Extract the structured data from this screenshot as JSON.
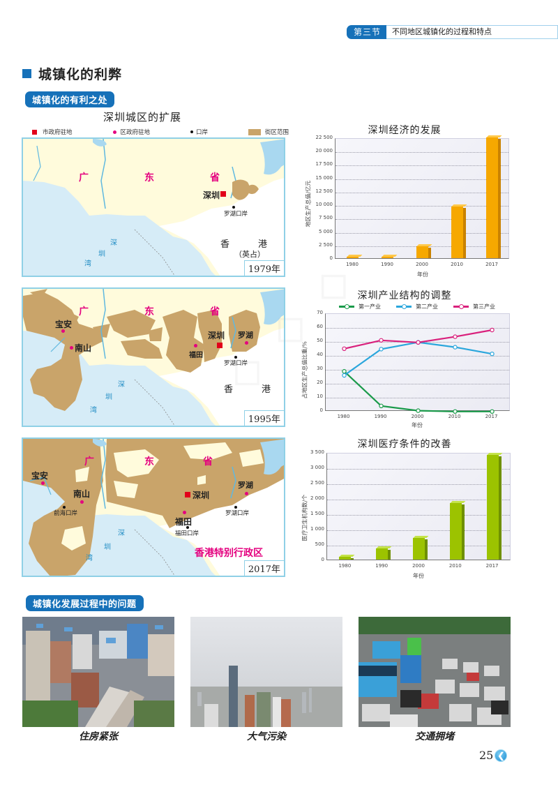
{
  "header": {
    "section_badge": "第三节",
    "section_title": "不同地区城镇化的过程和特点"
  },
  "main": {
    "title": "城镇化的利弊",
    "pill_benefits": "城镇化的有利之处",
    "pill_problems": "城镇化发展过程中的问题"
  },
  "maps": {
    "title": "深圳城区的扩展",
    "legend": {
      "city_gov": "市政府驻地",
      "district_gov": "区政府驻地",
      "port": "口岸",
      "urban_area": "街区范围"
    },
    "colors": {
      "urban": "#c9a46a",
      "land": "#fffbdc",
      "water": "#d6ecf7",
      "river": "#5fb8e0",
      "province_label": "#e4007f",
      "city_marker": "#e2001a"
    },
    "map_1979": {
      "year": "1979年",
      "province": [
        "广",
        "东",
        "省"
      ],
      "bay": [
        "深",
        "圳",
        "湾"
      ],
      "city": "深圳",
      "port": "罗湖口岸",
      "hk": [
        "香",
        "港"
      ],
      "hk_note": "（英占）"
    },
    "map_1995": {
      "year": "1995年",
      "province": [
        "广",
        "东",
        "省"
      ],
      "bay": [
        "深",
        "圳",
        "湾"
      ],
      "city": "深圳",
      "districts": [
        "宝安",
        "南山",
        "福田",
        "罗湖"
      ],
      "port": "罗湖口岸",
      "hk": [
        "香",
        "港"
      ]
    },
    "map_2017": {
      "year": "2017年",
      "province": [
        "广",
        "东",
        "省"
      ],
      "bay": [
        "深",
        "圳",
        "湾"
      ],
      "city": "深圳",
      "districts": [
        "宝安",
        "南山",
        "福田",
        "罗湖"
      ],
      "ports": [
        "前海口岸",
        "福田口岸",
        "罗湖口岸"
      ],
      "hk": "香港特别行政区"
    }
  },
  "chart_data": [
    {
      "type": "bar",
      "title": "深圳经济的发展",
      "xlabel": "年份",
      "ylabel": "地区生产总值/亿元",
      "categories": [
        "1980",
        "1990",
        "2000",
        "2010",
        "2017"
      ],
      "values": [
        3,
        172,
        2187,
        9582,
        22438
      ],
      "ylim": [
        0,
        22500
      ],
      "yticks": [
        "0",
        "2 500",
        "5 000",
        "7 500",
        "10 000",
        "12 500",
        "15 000",
        "17 500",
        "20 000",
        "22 500"
      ],
      "grid": true,
      "color": "#f6a800"
    },
    {
      "type": "line",
      "title": "深圳产业结构的调整",
      "xlabel": "年份",
      "ylabel": "占地区生产总值比重/%",
      "categories": [
        "1980",
        "1990",
        "2000",
        "2010",
        "2017"
      ],
      "series": [
        {
          "name": "第一产业",
          "color": "#1a9a4a",
          "values": [
            28.9,
            4.1,
            0.7,
            0.1,
            0.1
          ]
        },
        {
          "name": "第二产业",
          "color": "#2aa6dc",
          "values": [
            26.0,
            44.8,
            49.7,
            46.2,
            41.4
          ]
        },
        {
          "name": "第三产业",
          "color": "#d9207c",
          "values": [
            45.1,
            51.1,
            49.6,
            53.7,
            58.5
          ]
        }
      ],
      "ylim": [
        0,
        70
      ],
      "yticks": [
        "0",
        "10",
        "20",
        "30",
        "40",
        "50",
        "60",
        "70"
      ],
      "grid": true,
      "legend_position": "top"
    },
    {
      "type": "bar",
      "title": "深圳医疗条件的改善",
      "xlabel": "年份",
      "ylabel": "医疗卫生机构数/个",
      "categories": [
        "1980",
        "1990",
        "2000",
        "2010",
        "2017"
      ],
      "values": [
        80,
        360,
        700,
        1840,
        3420
      ],
      "ylim": [
        0,
        3500
      ],
      "yticks": [
        "0",
        "500",
        "1 000",
        "1 500",
        "2 000",
        "2 500",
        "3 000",
        "3 500"
      ],
      "grid": true,
      "color": "#9cc300"
    }
  ],
  "photos": [
    {
      "caption": "住房紧张",
      "subject": "dense-housing"
    },
    {
      "caption": "大气污染",
      "subject": "smog-skyline"
    },
    {
      "caption": "交通拥堵",
      "subject": "traffic-jam"
    }
  ],
  "footer": {
    "page_number": "25",
    "nav_icon": "back-arrow-icon"
  }
}
